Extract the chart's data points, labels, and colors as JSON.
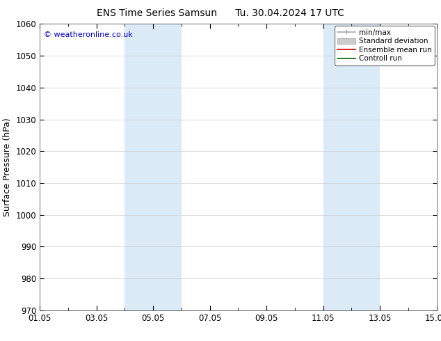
{
  "title_left": "ENS Time Series Samsun",
  "title_right": "Tu. 30.04.2024 17 UTC",
  "ylabel": "Surface Pressure (hPa)",
  "ylim": [
    970,
    1060
  ],
  "yticks": [
    970,
    980,
    990,
    1000,
    1010,
    1020,
    1030,
    1040,
    1050,
    1060
  ],
  "xtick_labels": [
    "01.05",
    "03.05",
    "05.05",
    "07.05",
    "09.05",
    "11.05",
    "13.05",
    "15.05"
  ],
  "xtick_positions": [
    0,
    2,
    4,
    6,
    8,
    10,
    12,
    14
  ],
  "xlim": [
    -0.0,
    14.0
  ],
  "shaded_bands": [
    {
      "xmin": 3.0,
      "xmax": 5.0
    },
    {
      "xmin": 10.0,
      "xmax": 12.0
    }
  ],
  "band_color": "#daeaf7",
  "watermark": "© weatheronline.co.uk",
  "watermark_color": "#0000bb",
  "bg_color": "#ffffff",
  "legend_entries": [
    {
      "label": "min/max"
    },
    {
      "label": "Standard deviation"
    },
    {
      "label": "Ensemble mean run"
    },
    {
      "label": "Controll run"
    }
  ],
  "title_fontsize": 10,
  "tick_fontsize": 8.5,
  "ylabel_fontsize": 9,
  "legend_fontsize": 7.5
}
